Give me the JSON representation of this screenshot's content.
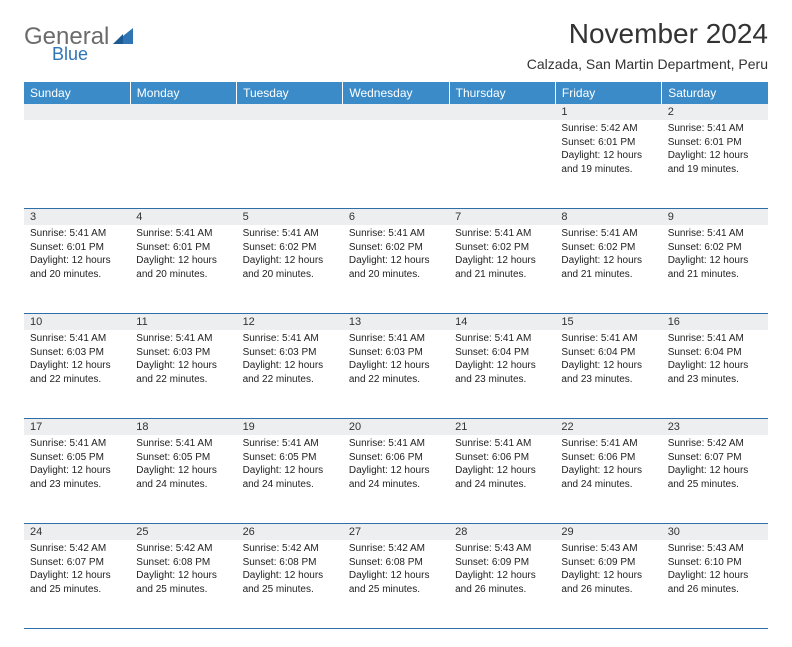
{
  "logo": {
    "line1": "General",
    "line2": "Blue"
  },
  "title": "November 2024",
  "subtitle": "Calzada, San Martin Department, Peru",
  "colors": {
    "header_bg": "#3b8bc9",
    "header_text": "#ffffff",
    "daynum_bg": "#eceeef",
    "border": "#2f6fa8",
    "logo_gray": "#6b6b6b",
    "logo_blue": "#2f75b5"
  },
  "day_headers": [
    "Sunday",
    "Monday",
    "Tuesday",
    "Wednesday",
    "Thursday",
    "Friday",
    "Saturday"
  ],
  "weeks": [
    [
      {
        "n": "",
        "lines": []
      },
      {
        "n": "",
        "lines": []
      },
      {
        "n": "",
        "lines": []
      },
      {
        "n": "",
        "lines": []
      },
      {
        "n": "",
        "lines": []
      },
      {
        "n": "1",
        "lines": [
          "Sunrise: 5:42 AM",
          "Sunset: 6:01 PM",
          "Daylight: 12 hours and 19 minutes."
        ]
      },
      {
        "n": "2",
        "lines": [
          "Sunrise: 5:41 AM",
          "Sunset: 6:01 PM",
          "Daylight: 12 hours and 19 minutes."
        ]
      }
    ],
    [
      {
        "n": "3",
        "lines": [
          "Sunrise: 5:41 AM",
          "Sunset: 6:01 PM",
          "Daylight: 12 hours and 20 minutes."
        ]
      },
      {
        "n": "4",
        "lines": [
          "Sunrise: 5:41 AM",
          "Sunset: 6:01 PM",
          "Daylight: 12 hours and 20 minutes."
        ]
      },
      {
        "n": "5",
        "lines": [
          "Sunrise: 5:41 AM",
          "Sunset: 6:02 PM",
          "Daylight: 12 hours and 20 minutes."
        ]
      },
      {
        "n": "6",
        "lines": [
          "Sunrise: 5:41 AM",
          "Sunset: 6:02 PM",
          "Daylight: 12 hours and 20 minutes."
        ]
      },
      {
        "n": "7",
        "lines": [
          "Sunrise: 5:41 AM",
          "Sunset: 6:02 PM",
          "Daylight: 12 hours and 21 minutes."
        ]
      },
      {
        "n": "8",
        "lines": [
          "Sunrise: 5:41 AM",
          "Sunset: 6:02 PM",
          "Daylight: 12 hours and 21 minutes."
        ]
      },
      {
        "n": "9",
        "lines": [
          "Sunrise: 5:41 AM",
          "Sunset: 6:02 PM",
          "Daylight: 12 hours and 21 minutes."
        ]
      }
    ],
    [
      {
        "n": "10",
        "lines": [
          "Sunrise: 5:41 AM",
          "Sunset: 6:03 PM",
          "Daylight: 12 hours and 22 minutes."
        ]
      },
      {
        "n": "11",
        "lines": [
          "Sunrise: 5:41 AM",
          "Sunset: 6:03 PM",
          "Daylight: 12 hours and 22 minutes."
        ]
      },
      {
        "n": "12",
        "lines": [
          "Sunrise: 5:41 AM",
          "Sunset: 6:03 PM",
          "Daylight: 12 hours and 22 minutes."
        ]
      },
      {
        "n": "13",
        "lines": [
          "Sunrise: 5:41 AM",
          "Sunset: 6:03 PM",
          "Daylight: 12 hours and 22 minutes."
        ]
      },
      {
        "n": "14",
        "lines": [
          "Sunrise: 5:41 AM",
          "Sunset: 6:04 PM",
          "Daylight: 12 hours and 23 minutes."
        ]
      },
      {
        "n": "15",
        "lines": [
          "Sunrise: 5:41 AM",
          "Sunset: 6:04 PM",
          "Daylight: 12 hours and 23 minutes."
        ]
      },
      {
        "n": "16",
        "lines": [
          "Sunrise: 5:41 AM",
          "Sunset: 6:04 PM",
          "Daylight: 12 hours and 23 minutes."
        ]
      }
    ],
    [
      {
        "n": "17",
        "lines": [
          "Sunrise: 5:41 AM",
          "Sunset: 6:05 PM",
          "Daylight: 12 hours and 23 minutes."
        ]
      },
      {
        "n": "18",
        "lines": [
          "Sunrise: 5:41 AM",
          "Sunset: 6:05 PM",
          "Daylight: 12 hours and 24 minutes."
        ]
      },
      {
        "n": "19",
        "lines": [
          "Sunrise: 5:41 AM",
          "Sunset: 6:05 PM",
          "Daylight: 12 hours and 24 minutes."
        ]
      },
      {
        "n": "20",
        "lines": [
          "Sunrise: 5:41 AM",
          "Sunset: 6:06 PM",
          "Daylight: 12 hours and 24 minutes."
        ]
      },
      {
        "n": "21",
        "lines": [
          "Sunrise: 5:41 AM",
          "Sunset: 6:06 PM",
          "Daylight: 12 hours and 24 minutes."
        ]
      },
      {
        "n": "22",
        "lines": [
          "Sunrise: 5:41 AM",
          "Sunset: 6:06 PM",
          "Daylight: 12 hours and 24 minutes."
        ]
      },
      {
        "n": "23",
        "lines": [
          "Sunrise: 5:42 AM",
          "Sunset: 6:07 PM",
          "Daylight: 12 hours and 25 minutes."
        ]
      }
    ],
    [
      {
        "n": "24",
        "lines": [
          "Sunrise: 5:42 AM",
          "Sunset: 6:07 PM",
          "Daylight: 12 hours and 25 minutes."
        ]
      },
      {
        "n": "25",
        "lines": [
          "Sunrise: 5:42 AM",
          "Sunset: 6:08 PM",
          "Daylight: 12 hours and 25 minutes."
        ]
      },
      {
        "n": "26",
        "lines": [
          "Sunrise: 5:42 AM",
          "Sunset: 6:08 PM",
          "Daylight: 12 hours and 25 minutes."
        ]
      },
      {
        "n": "27",
        "lines": [
          "Sunrise: 5:42 AM",
          "Sunset: 6:08 PM",
          "Daylight: 12 hours and 25 minutes."
        ]
      },
      {
        "n": "28",
        "lines": [
          "Sunrise: 5:43 AM",
          "Sunset: 6:09 PM",
          "Daylight: 12 hours and 26 minutes."
        ]
      },
      {
        "n": "29",
        "lines": [
          "Sunrise: 5:43 AM",
          "Sunset: 6:09 PM",
          "Daylight: 12 hours and 26 minutes."
        ]
      },
      {
        "n": "30",
        "lines": [
          "Sunrise: 5:43 AM",
          "Sunset: 6:10 PM",
          "Daylight: 12 hours and 26 minutes."
        ]
      }
    ]
  ]
}
